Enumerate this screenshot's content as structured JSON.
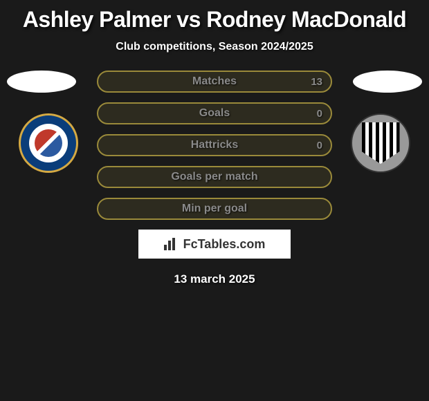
{
  "title": "Ashley Palmer vs Rodney MacDonald",
  "subtitle": "Club competitions, Season 2024/2025",
  "stats": [
    {
      "label": "Matches",
      "right_value": "13"
    },
    {
      "label": "Goals",
      "right_value": "0"
    },
    {
      "label": "Hattricks",
      "right_value": "0"
    },
    {
      "label": "Goals per match",
      "right_value": ""
    },
    {
      "label": "Min per goal",
      "right_value": ""
    }
  ],
  "footer_brand": "FcTables.com",
  "date": "13 march 2025",
  "styling": {
    "background": "#1a1a1a",
    "bar_border_color": "#9a8a3a",
    "bar_bg_color": "rgba(154,138,58,0.15)",
    "label_color": "#8a8a8a",
    "title_color": "#ffffff",
    "footer_bg": "#ffffff",
    "badge_left": {
      "outer_bg": "#0a3d7a",
      "outer_border": "#d4a943",
      "inner_bg": "#ffffff",
      "diag_colors": [
        "#c0392b",
        "#2c5aa0"
      ]
    },
    "badge_right": {
      "outer_bg": "#999999",
      "outer_border": "#333333",
      "stripe_dark": "#000000",
      "stripe_light": "#ffffff"
    }
  }
}
